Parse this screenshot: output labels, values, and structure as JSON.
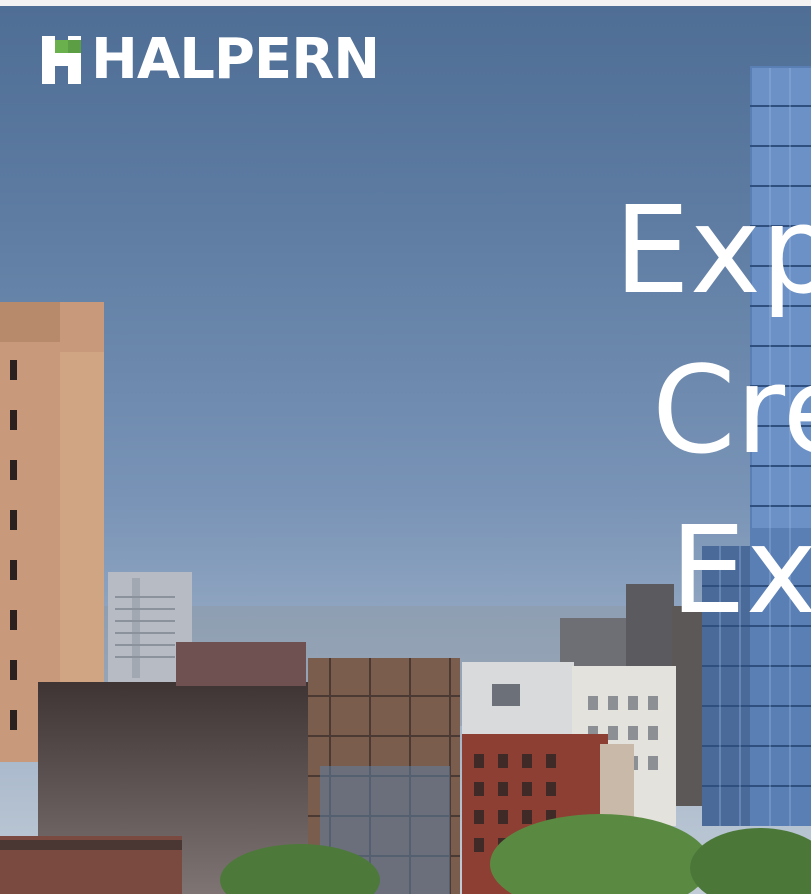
{
  "brand": {
    "logo_text": "HALPERN",
    "accent_color": "#6ab04c"
  },
  "hero": {
    "headline_lines": [
      "Exp",
      "Cre",
      "Ex"
    ],
    "image": "new-york-skyline-with-glass-tower-icon"
  }
}
